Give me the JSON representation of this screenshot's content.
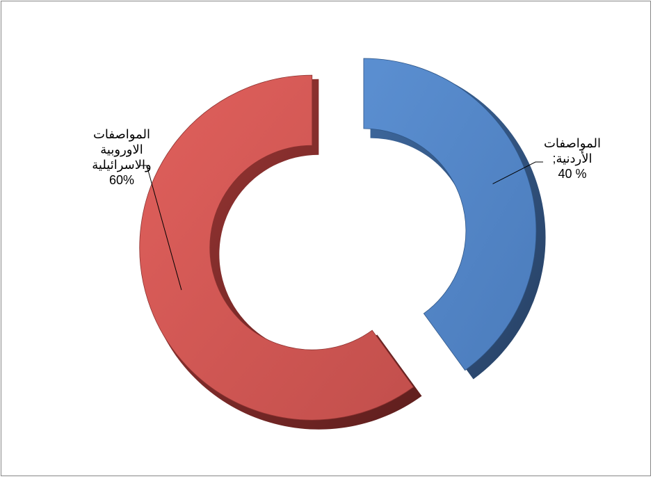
{
  "chart_data": {
    "type": "pie",
    "variant": "doughnut-exploded-3d",
    "title": "",
    "series": [
      {
        "values": [
          40,
          60
        ]
      }
    ],
    "categories": [
      "المواصفات الأردنية",
      "المواصفات الاوروبية والاسرائيلية"
    ],
    "slices": [
      {
        "label_lines": [
          "المواصفات",
          "الأردنية;"
        ],
        "value_text": "40 %",
        "value": 40,
        "color": "#4F81BD"
      },
      {
        "label_lines": [
          "المواصفات",
          "الاوروبية",
          "والاسرائيلية"
        ],
        "value_text": "60%",
        "value": 60,
        "color": "#C0504D"
      }
    ],
    "legend": "none"
  }
}
